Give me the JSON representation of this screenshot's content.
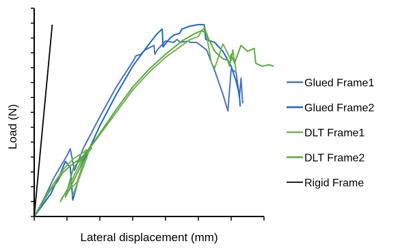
{
  "chart_data": {
    "type": "line",
    "xlabel": "Lateral displacement (mm)",
    "ylabel": "Load (N)",
    "xlim": [
      0,
      14
    ],
    "ylim": [
      0,
      14
    ],
    "grid": false,
    "tick_labels": false,
    "legend_position": "right",
    "series": [
      {
        "name": "Glued Frame1",
        "color": "#4a72c4",
        "x": [
          0,
          0.6,
          1.2,
          2.0,
          2.2,
          2.45,
          3.0,
          4.0,
          5.0,
          6.0,
          6.2,
          6.5,
          6.75,
          7.3,
          7.35,
          7.5,
          8.0,
          8.5,
          8.7,
          8.9,
          9.4,
          9.5,
          9.9,
          10.5,
          11.0,
          11.5,
          11.8,
          12.0,
          12.3,
          12.5,
          12.6,
          12.7
        ],
        "y": [
          0,
          1.2,
          2.6,
          4.1,
          4.55,
          3.1,
          4.6,
          6.7,
          8.7,
          10.4,
          10.8,
          10.9,
          11.2,
          11.5,
          10.9,
          11.2,
          11.8,
          11.7,
          11.9,
          11.7,
          11.8,
          11.7,
          11.7,
          11.2,
          9.8,
          8.2,
          7.1,
          9.9,
          9.7,
          8.0,
          9.3,
          7.6
        ]
      },
      {
        "name": "Glued Frame2",
        "color": "#1a66c9",
        "x": [
          0,
          1.0,
          1.6,
          1.9,
          2.2,
          2.35,
          3.0,
          4.0,
          5.0,
          6.0,
          7.0,
          7.5,
          7.8,
          7.85,
          8.2,
          8.5,
          8.85,
          9.0,
          9.5,
          10.0,
          10.2,
          10.35,
          10.45,
          11.0,
          11.5,
          12.0,
          12.3,
          12.5,
          12.55
        ],
        "y": [
          0,
          1.5,
          2.9,
          3.7,
          3.3,
          1.1,
          3.7,
          6.1,
          8.2,
          10.1,
          11.6,
          12.3,
          12.6,
          11.4,
          11.9,
          12.2,
          12.3,
          12.6,
          12.8,
          12.9,
          12.9,
          12.9,
          11.9,
          11.7,
          11.1,
          10.1,
          9.1,
          8.2,
          7.4
        ]
      },
      {
        "name": "DLT Frame1",
        "color": "#72b252",
        "x": [
          0,
          1.0,
          1.8,
          2.4,
          3.0,
          3.2,
          2.1,
          1.6,
          1.7,
          2.6,
          3.0,
          3.25,
          2.35,
          3.4,
          4.0,
          5.0,
          6.0,
          7.0,
          8.0,
          9.0,
          9.5,
          10.0,
          10.2,
          10.4,
          10.5,
          10.8,
          11.0,
          11.5,
          12.0,
          12.1,
          12.3
        ],
        "y": [
          0,
          1.9,
          3.2,
          3.9,
          4.3,
          4.5,
          2.0,
          1.0,
          1.3,
          2.3,
          3.6,
          4.1,
          1.4,
          4.6,
          5.5,
          7.0,
          8.5,
          9.7,
          10.7,
          11.5,
          11.9,
          12.1,
          12.5,
          12.7,
          12.2,
          10.3,
          10.0,
          11.6,
          10.5,
          11.2,
          9.8
        ]
      },
      {
        "name": "DLT Frame2",
        "color": "#5aa93e",
        "x": [
          0,
          0.5,
          1.0,
          1.4,
          1.7,
          2.2,
          2.8,
          3.3,
          3.5,
          2.4,
          1.9,
          2.8,
          3.1,
          4.0,
          5.0,
          6.0,
          7.0,
          8.0,
          9.0,
          9.8,
          10.2,
          10.5,
          10.6,
          11.0,
          11.5,
          11.8,
          11.9,
          12.0,
          12.2,
          12.6,
          13.0,
          13.4,
          13.5,
          13.9,
          14.3,
          14.6
        ],
        "y": [
          0,
          0.9,
          1.8,
          2.3,
          2.9,
          3.4,
          3.9,
          4.4,
          4.6,
          3.3,
          1.3,
          3.3,
          4.2,
          5.6,
          7.2,
          8.7,
          9.9,
          10.9,
          11.8,
          12.3,
          12.5,
          12.3,
          12.0,
          11.1,
          10.6,
          10.5,
          10.1,
          10.9,
          10.3,
          11.5,
          11.1,
          11.3,
          10.3,
          10.1,
          10.2,
          10.1
        ]
      },
      {
        "name": "Rigid Frame",
        "color": "#000000",
        "x": [
          0,
          1.1
        ],
        "y": [
          0,
          12.9
        ]
      }
    ]
  }
}
